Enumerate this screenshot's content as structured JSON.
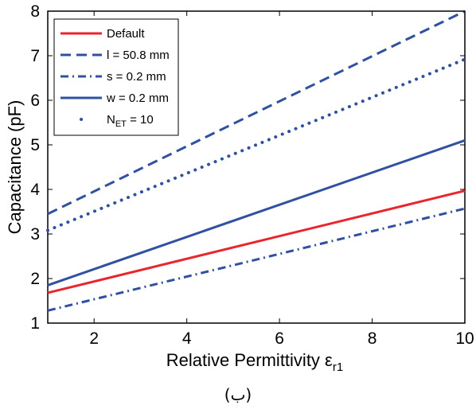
{
  "chart_data": {
    "type": "line",
    "xlabel": "Relative Permittivity ε",
    "xlabel_sub": "r1",
    "ylabel": "Capacitance (pF)",
    "xlim": [
      1,
      10
    ],
    "ylim": [
      1,
      8
    ],
    "xticks": [
      2,
      4,
      6,
      8,
      10
    ],
    "yticks": [
      1,
      2,
      3,
      4,
      5,
      6,
      7,
      8
    ],
    "grid": false,
    "legend_position": "top-left",
    "series": [
      {
        "name": "Default",
        "label_main": "Default",
        "label_sub": "",
        "label_tail": "",
        "style": "solid",
        "color": "#e8262d",
        "x": [
          1,
          10
        ],
        "y": [
          1.68,
          3.97
        ]
      },
      {
        "name": "l = 50.8 mm",
        "label_main": "l = 50.8 mm",
        "label_sub": "",
        "label_tail": "",
        "style": "dashed",
        "color": "#3050a0",
        "x": [
          1,
          10
        ],
        "y": [
          3.45,
          8.0
        ]
      },
      {
        "name": "s = 0.2 mm",
        "label_main": "s = 0.2 mm",
        "label_sub": "",
        "label_tail": "",
        "style": "dashdot",
        "color": "#3050a0",
        "x": [
          1,
          10
        ],
        "y": [
          1.28,
          3.57
        ]
      },
      {
        "name": "w = 0.2 mm",
        "label_main": "w = 0.2 mm",
        "label_sub": "",
        "label_tail": "",
        "style": "solid",
        "color": "#3050a0",
        "x": [
          1,
          10
        ],
        "y": [
          1.85,
          5.1
        ]
      },
      {
        "name": "N_ET = 10",
        "label_main": "N",
        "label_sub": "ET",
        "label_tail": " = 10",
        "style": "dotted",
        "color": "#3050a0",
        "x": [
          1,
          10
        ],
        "y": [
          3.08,
          6.92
        ]
      }
    ]
  },
  "caption": "(ب)"
}
